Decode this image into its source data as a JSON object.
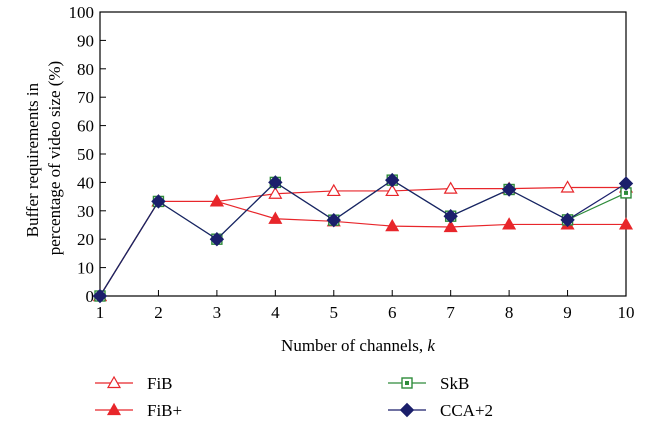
{
  "chart_data": {
    "type": "line",
    "xlabel": "Number of channels, ",
    "xlabel_var": "k",
    "ylabel": [
      "Buffer requirements in",
      "percentage of video size (%)"
    ],
    "x": [
      1,
      2,
      3,
      4,
      5,
      6,
      7,
      8,
      9,
      10
    ],
    "xlim": [
      1,
      10
    ],
    "ylim": [
      0,
      100
    ],
    "yticks": [
      0,
      10,
      20,
      30,
      40,
      50,
      60,
      70,
      80,
      90,
      100
    ],
    "grid": false,
    "legend_position": "bottom",
    "series": [
      {
        "name": "FiB",
        "color": "#e8262b",
        "marker": "triangle-open",
        "values": [
          0,
          33.3,
          33.3,
          36,
          37,
          37,
          37.8,
          37.8,
          38.2,
          38.2
        ]
      },
      {
        "name": "FiB+",
        "color": "#e8262b",
        "marker": "triangle-filled",
        "values": [
          0,
          33.3,
          33.3,
          27.2,
          26.3,
          24.6,
          24.3,
          25.2,
          25.2,
          25.2
        ]
      },
      {
        "name": "SkB",
        "color": "#2e8b3a",
        "marker": "square-open",
        "values": [
          0,
          33.3,
          20,
          40,
          26.7,
          40.8,
          28.1,
          37.5,
          26.8,
          36.3
        ]
      },
      {
        "name": "CCA+2",
        "color": "#1b1f6b",
        "marker": "diamond-filled",
        "values": [
          0,
          33.3,
          20,
          40,
          26.7,
          40.8,
          28.1,
          37.5,
          26.8,
          39.6
        ]
      }
    ]
  }
}
